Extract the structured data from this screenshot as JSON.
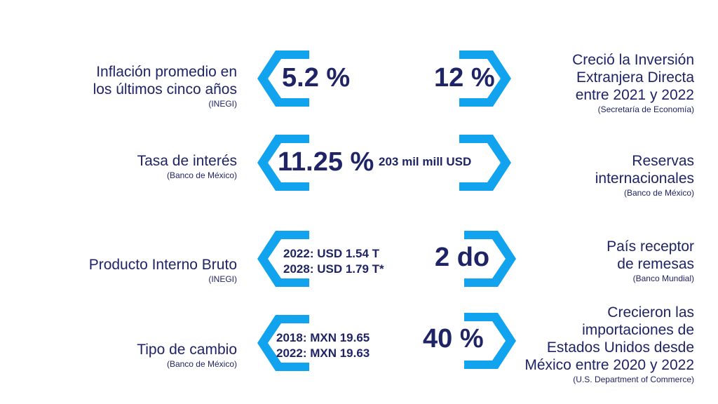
{
  "colors": {
    "accent": "#12a3ef",
    "accent_light": "#6fcff5",
    "text": "#1f2466"
  },
  "rows": [
    {
      "left_label": [
        "Inflación promedio en",
        "los últimos cinco años"
      ],
      "left_source": "(INEGI)",
      "left_value": "5.2 %",
      "right_value": "12 %",
      "right_label": [
        "Creció la Inversión",
        "Extranjera Directa",
        "entre 2021 y 2022"
      ],
      "right_source": "(Secretaría de Economía)"
    },
    {
      "left_label": [
        "Tasa de interés"
      ],
      "left_source": "(Banco de México)",
      "left_value": "11.25 %",
      "right_value": "203 mil mill USD",
      "right_label": [
        "Reservas",
        "internacionales"
      ],
      "right_source": "(Banco de México)"
    },
    {
      "left_label": [
        "Producto Interno Bruto"
      ],
      "left_source": "(INEGI)",
      "left_value_lines": [
        "2022: USD 1.54 T",
        "2028: USD 1.79 T*"
      ],
      "right_value": "2 do",
      "right_label": [
        "País receptor",
        "de remesas"
      ],
      "right_source": "(Banco Mundial)"
    },
    {
      "left_label": [
        "Tipo de cambio"
      ],
      "left_source": "(Banco de México)",
      "left_value_lines": [
        "2018: MXN 19.65",
        "2022: MXN 19.63"
      ],
      "right_value": "40 %",
      "right_label": [
        "Crecieron las",
        "importaciones de",
        "Estados Unidos desde",
        "México entre 2020 y 2022"
      ],
      "right_source": "(U.S. Department of Commerce)"
    }
  ]
}
